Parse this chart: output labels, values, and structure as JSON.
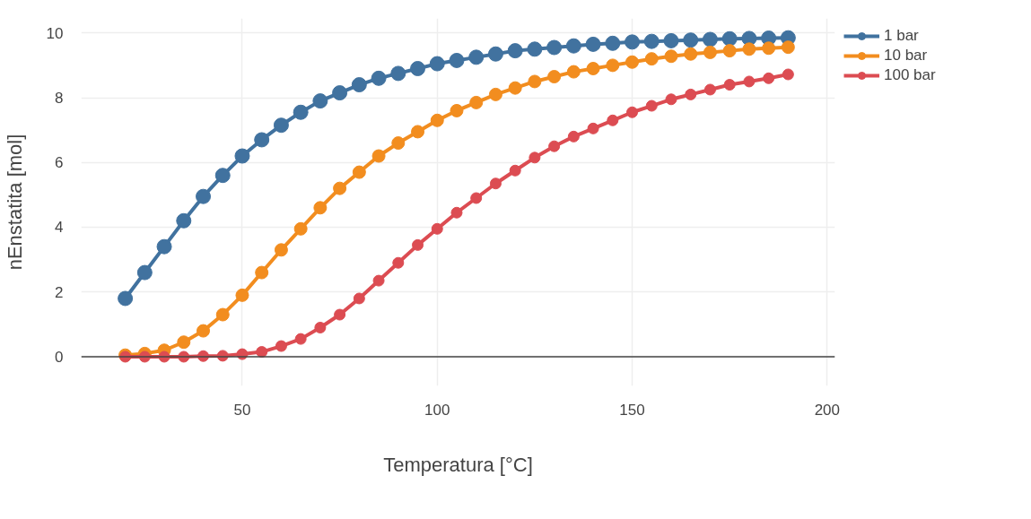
{
  "chart_data": {
    "type": "line",
    "xlabel": "Temperatura [°C]",
    "ylabel": "nEnstatita [mol]",
    "x": [
      20,
      25,
      30,
      35,
      40,
      45,
      50,
      55,
      60,
      65,
      70,
      75,
      80,
      85,
      90,
      95,
      100,
      105,
      110,
      115,
      120,
      125,
      130,
      135,
      140,
      145,
      150,
      155,
      160,
      165,
      170,
      175,
      180,
      185,
      190
    ],
    "series": [
      {
        "name": "1 bar",
        "color": "#41729f",
        "values": [
          1.8,
          2.6,
          3.4,
          4.2,
          4.95,
          5.6,
          6.2,
          6.7,
          7.15,
          7.55,
          7.9,
          8.15,
          8.4,
          8.6,
          8.75,
          8.9,
          9.05,
          9.15,
          9.25,
          9.35,
          9.45,
          9.5,
          9.55,
          9.6,
          9.65,
          9.68,
          9.72,
          9.74,
          9.76,
          9.78,
          9.8,
          9.82,
          9.83,
          9.84,
          9.85
        ]
      },
      {
        "name": "10 bar",
        "color": "#f28d1f",
        "values": [
          0.05,
          0.1,
          0.2,
          0.45,
          0.8,
          1.3,
          1.9,
          2.6,
          3.3,
          3.95,
          4.6,
          5.2,
          5.7,
          6.2,
          6.6,
          6.95,
          7.3,
          7.6,
          7.85,
          8.1,
          8.3,
          8.5,
          8.65,
          8.8,
          8.9,
          9.0,
          9.1,
          9.2,
          9.28,
          9.35,
          9.4,
          9.45,
          9.5,
          9.53,
          9.56
        ]
      },
      {
        "name": "100 bar",
        "color": "#dc4c52",
        "values": [
          0,
          0,
          0,
          0,
          0.02,
          0.03,
          0.08,
          0.15,
          0.33,
          0.55,
          0.9,
          1.3,
          1.8,
          2.35,
          2.9,
          3.45,
          3.95,
          4.45,
          4.9,
          5.35,
          5.75,
          6.15,
          6.5,
          6.8,
          7.05,
          7.3,
          7.55,
          7.75,
          7.95,
          8.1,
          8.25,
          8.4,
          8.5,
          8.6,
          8.72
        ]
      }
    ],
    "xlim": [
      8.7,
      202
    ],
    "ylim": [
      -0.9,
      10.45
    ],
    "xticks": [
      50,
      100,
      150,
      200
    ],
    "yticks": [
      0,
      2,
      4,
      6,
      8,
      10
    ],
    "ref_lines": [
      {
        "axis": "y",
        "value": 0,
        "color": "#444444"
      }
    ],
    "grid": true,
    "legend": "top right",
    "marker": "circle",
    "line_style": "solid"
  }
}
